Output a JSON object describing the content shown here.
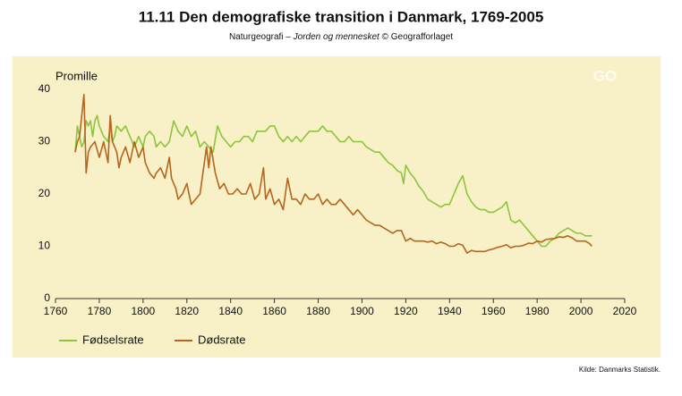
{
  "chart_data": {
    "type": "line",
    "title": "11.11  Den demografiske transition i Danmark, 1769-2005",
    "subtitle": {
      "before": "Naturgeografi – ",
      "italic": "Jorden og mennesket",
      "after": " © Geografforlaget"
    },
    "y_label": "Promille",
    "logo": "GO",
    "source": "Kilde: Danmarks Statistik.",
    "xlim": [
      1760,
      2020
    ],
    "xticks": [
      1760,
      1780,
      1800,
      1820,
      1840,
      1860,
      1880,
      1900,
      1920,
      1940,
      1960,
      1980,
      2000,
      2020
    ],
    "ylim": [
      0,
      40
    ],
    "yticks": [
      0,
      10,
      20,
      30,
      40
    ],
    "grid": false,
    "series": [
      {
        "name": "Fødselsrate",
        "color": "#8dc43f",
        "x": [
          1769,
          1770,
          1771,
          1772,
          1773,
          1774,
          1775,
          1776,
          1777,
          1778,
          1779,
          1780,
          1782,
          1784,
          1785,
          1786,
          1787,
          1788,
          1790,
          1792,
          1794,
          1796,
          1798,
          1800,
          1801,
          1803,
          1805,
          1806,
          1808,
          1810,
          1812,
          1814,
          1815,
          1816,
          1818,
          1820,
          1822,
          1824,
          1826,
          1828,
          1830,
          1832,
          1834,
          1836,
          1838,
          1840,
          1842,
          1844,
          1846,
          1848,
          1850,
          1852,
          1854,
          1856,
          1858,
          1860,
          1862,
          1864,
          1866,
          1868,
          1870,
          1872,
          1874,
          1876,
          1878,
          1880,
          1882,
          1884,
          1886,
          1888,
          1890,
          1892,
          1894,
          1896,
          1898,
          1900,
          1902,
          1904,
          1906,
          1908,
          1910,
          1912,
          1914,
          1916,
          1918,
          1919,
          1920,
          1922,
          1924,
          1926,
          1928,
          1930,
          1932,
          1934,
          1936,
          1938,
          1940,
          1942,
          1944,
          1946,
          1948,
          1950,
          1952,
          1954,
          1956,
          1958,
          1960,
          1962,
          1964,
          1966,
          1968,
          1970,
          1972,
          1974,
          1976,
          1978,
          1980,
          1982,
          1984,
          1986,
          1988,
          1990,
          1992,
          1994,
          1996,
          1998,
          2000,
          2002,
          2005
        ],
        "values": [
          28,
          33,
          31,
          29,
          30,
          34,
          33,
          34,
          31,
          34,
          35,
          33,
          31,
          30,
          33,
          30,
          31,
          33,
          32,
          33,
          31,
          29,
          31,
          29,
          31,
          32,
          31,
          29,
          30,
          29,
          30,
          34,
          33,
          32,
          31,
          33,
          31,
          32,
          29,
          30,
          29,
          28,
          33,
          31,
          30,
          29,
          30,
          30,
          31,
          31,
          30,
          32,
          32,
          32,
          33,
          33,
          31,
          30,
          31,
          30,
          31,
          30,
          31,
          32,
          32,
          32,
          33,
          32,
          32,
          31,
          30,
          30,
          31,
          30,
          30,
          30,
          29,
          28.5,
          28,
          28,
          27,
          26,
          25.5,
          24.5,
          24,
          22,
          25.5,
          24,
          23,
          21.5,
          20.5,
          19,
          18.5,
          18,
          17.5,
          18,
          18,
          20,
          22,
          23.5,
          20,
          18.5,
          17.5,
          17,
          17,
          16.5,
          16.5,
          17,
          17.5,
          18.5,
          15,
          14.5,
          15,
          14,
          13,
          12,
          11,
          10,
          10,
          11,
          11.5,
          12.5,
          13,
          13.5,
          13,
          12.5,
          12.5,
          12,
          12
        ]
      },
      {
        "name": "Dødsrate",
        "color": "#b5651d",
        "x": [
          1769,
          1770,
          1771,
          1772,
          1773,
          1774,
          1775,
          1776,
          1778,
          1780,
          1782,
          1784,
          1785,
          1786,
          1788,
          1789,
          1790,
          1792,
          1794,
          1796,
          1798,
          1800,
          1801,
          1803,
          1805,
          1806,
          1808,
          1810,
          1812,
          1813,
          1815,
          1816,
          1818,
          1820,
          1822,
          1824,
          1826,
          1828,
          1829,
          1830,
          1831,
          1833,
          1835,
          1837,
          1839,
          1841,
          1843,
          1845,
          1847,
          1849,
          1851,
          1853,
          1855,
          1856,
          1858,
          1860,
          1862,
          1864,
          1866,
          1868,
          1870,
          1872,
          1874,
          1876,
          1878,
          1880,
          1882,
          1884,
          1886,
          1888,
          1890,
          1892,
          1894,
          1896,
          1898,
          1900,
          1902,
          1904,
          1906,
          1908,
          1910,
          1912,
          1914,
          1916,
          1918,
          1920,
          1922,
          1924,
          1926,
          1928,
          1930,
          1932,
          1934,
          1936,
          1938,
          1940,
          1942,
          1944,
          1946,
          1948,
          1950,
          1952,
          1954,
          1956,
          1958,
          1960,
          1962,
          1964,
          1966,
          1968,
          1970,
          1972,
          1974,
          1976,
          1978,
          1980,
          1982,
          1984,
          1986,
          1988,
          1990,
          1992,
          1994,
          1996,
          1998,
          2000,
          2002,
          2004,
          2005
        ],
        "values": [
          28,
          30,
          31,
          35,
          39,
          24,
          28,
          29,
          30,
          27,
          30,
          26,
          35,
          30,
          28,
          25,
          27,
          29,
          26,
          30,
          27,
          29,
          26,
          24,
          23,
          24,
          25,
          23,
          27,
          23,
          21,
          19,
          20,
          22,
          18,
          19,
          20,
          26,
          29,
          25,
          29,
          24,
          21,
          22,
          20,
          20,
          21,
          20,
          20,
          22,
          19,
          20,
          25,
          19,
          21,
          18,
          19,
          17,
          23,
          19,
          19,
          18,
          20,
          19,
          19,
          20,
          18,
          19,
          18,
          18,
          19,
          18,
          17,
          16,
          17,
          16,
          15,
          14.5,
          14,
          14,
          13.5,
          13,
          12.5,
          13,
          13,
          11,
          11.5,
          11,
          11,
          11,
          10.8,
          11,
          10.5,
          10.8,
          10.5,
          10,
          10,
          10.5,
          10.2,
          8.7,
          9.2,
          9,
          9,
          9,
          9.3,
          9.5,
          9.8,
          10,
          10.3,
          9.7,
          10,
          10,
          10.2,
          10.6,
          10.5,
          11,
          10.8,
          11.3,
          11.4,
          11.5,
          11.8,
          11.7,
          12,
          11.6,
          11,
          11,
          11,
          10.5,
          10
        ]
      }
    ]
  }
}
